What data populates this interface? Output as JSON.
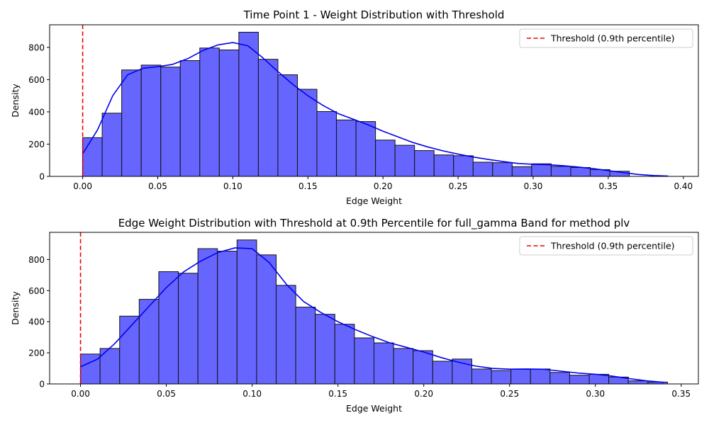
{
  "chart_data": [
    {
      "type": "histogram",
      "title": "Time Point 1 - Weight Distribution with Threshold",
      "xlabel": "Edge Weight",
      "ylabel": "Density",
      "xlim": [
        -0.022,
        0.41
      ],
      "ylim": [
        0,
        940
      ],
      "xticks": [
        0.0,
        0.05,
        0.1,
        0.15,
        0.2,
        0.25,
        0.3,
        0.35,
        0.4
      ],
      "xtick_labels": [
        "0.00",
        "0.05",
        "0.10",
        "0.15",
        "0.20",
        "0.25",
        "0.30",
        "0.35",
        "0.40"
      ],
      "yticks": [
        0,
        200,
        400,
        600,
        800
      ],
      "bin_start": 0.0,
      "bin_width": 0.013,
      "values": [
        240,
        392,
        660,
        690,
        678,
        718,
        796,
        784,
        894,
        726,
        630,
        540,
        402,
        350,
        340,
        225,
        193,
        160,
        133,
        128,
        88,
        85,
        60,
        78,
        62,
        55,
        42,
        32
      ],
      "kde": {
        "x": [
          0.0,
          0.01,
          0.02,
          0.03,
          0.04,
          0.05,
          0.06,
          0.07,
          0.08,
          0.09,
          0.1,
          0.11,
          0.12,
          0.13,
          0.14,
          0.15,
          0.16,
          0.17,
          0.18,
          0.19,
          0.2,
          0.21,
          0.22,
          0.23,
          0.24,
          0.25,
          0.26,
          0.27,
          0.28,
          0.29,
          0.3,
          0.31,
          0.32,
          0.33,
          0.34,
          0.35,
          0.36,
          0.37,
          0.38,
          0.39
        ],
        "y": [
          140,
          290,
          500,
          630,
          670,
          680,
          695,
          730,
          780,
          815,
          830,
          810,
          735,
          650,
          570,
          500,
          440,
          390,
          355,
          320,
          280,
          245,
          210,
          182,
          158,
          138,
          120,
          105,
          92,
          80,
          75,
          72,
          66,
          58,
          48,
          36,
          23,
          12,
          5,
          2
        ]
      },
      "threshold": 0.0,
      "legend": {
        "label": "Threshold (0.9th percentile)",
        "placement": "upper right"
      },
      "colors": {
        "bar_fill": "#6666ff",
        "bar_edge": "#111111",
        "kde": "#0000ee",
        "threshold": "#ee0000"
      }
    },
    {
      "type": "histogram",
      "title": "Edge Weight Distribution with Threshold at 0.9th Percentile for full_gamma Band for method plv",
      "xlabel": "Edge Weight",
      "ylabel": "Density",
      "xlim": [
        -0.018,
        0.36
      ],
      "ylim": [
        0,
        975
      ],
      "xticks": [
        0.0,
        0.05,
        0.1,
        0.15,
        0.2,
        0.25,
        0.3,
        0.35
      ],
      "xtick_labels": [
        "0.00",
        "0.05",
        "0.10",
        "0.15",
        "0.20",
        "0.25",
        "0.30",
        "0.35"
      ],
      "yticks": [
        0,
        200,
        400,
        600,
        800
      ],
      "bin_start": 0.0,
      "bin_width": 0.0114,
      "values": [
        192,
        228,
        436,
        544,
        722,
        712,
        870,
        854,
        926,
        830,
        634,
        494,
        448,
        384,
        296,
        264,
        228,
        214,
        146,
        160,
        96,
        86,
        94,
        96,
        74,
        56,
        62,
        44,
        20,
        12
      ],
      "kde": {
        "x": [
          0.0,
          0.01,
          0.02,
          0.03,
          0.04,
          0.05,
          0.06,
          0.07,
          0.08,
          0.09,
          0.1,
          0.11,
          0.12,
          0.13,
          0.14,
          0.15,
          0.16,
          0.17,
          0.18,
          0.19,
          0.2,
          0.21,
          0.22,
          0.23,
          0.24,
          0.25,
          0.26,
          0.27,
          0.28,
          0.29,
          0.3,
          0.31,
          0.32,
          0.33,
          0.34
        ],
        "y": [
          110,
          160,
          260,
          380,
          500,
          620,
          720,
          790,
          845,
          875,
          870,
          780,
          640,
          530,
          460,
          400,
          350,
          305,
          265,
          235,
          205,
          170,
          140,
          115,
          100,
          95,
          96,
          94,
          82,
          70,
          62,
          50,
          34,
          20,
          10
        ]
      },
      "threshold": 0.0,
      "legend": {
        "label": "Threshold (0.9th percentile)",
        "placement": "upper right"
      },
      "colors": {
        "bar_fill": "#6666ff",
        "bar_edge": "#111111",
        "kde": "#0000ee",
        "threshold": "#ee0000"
      }
    }
  ]
}
